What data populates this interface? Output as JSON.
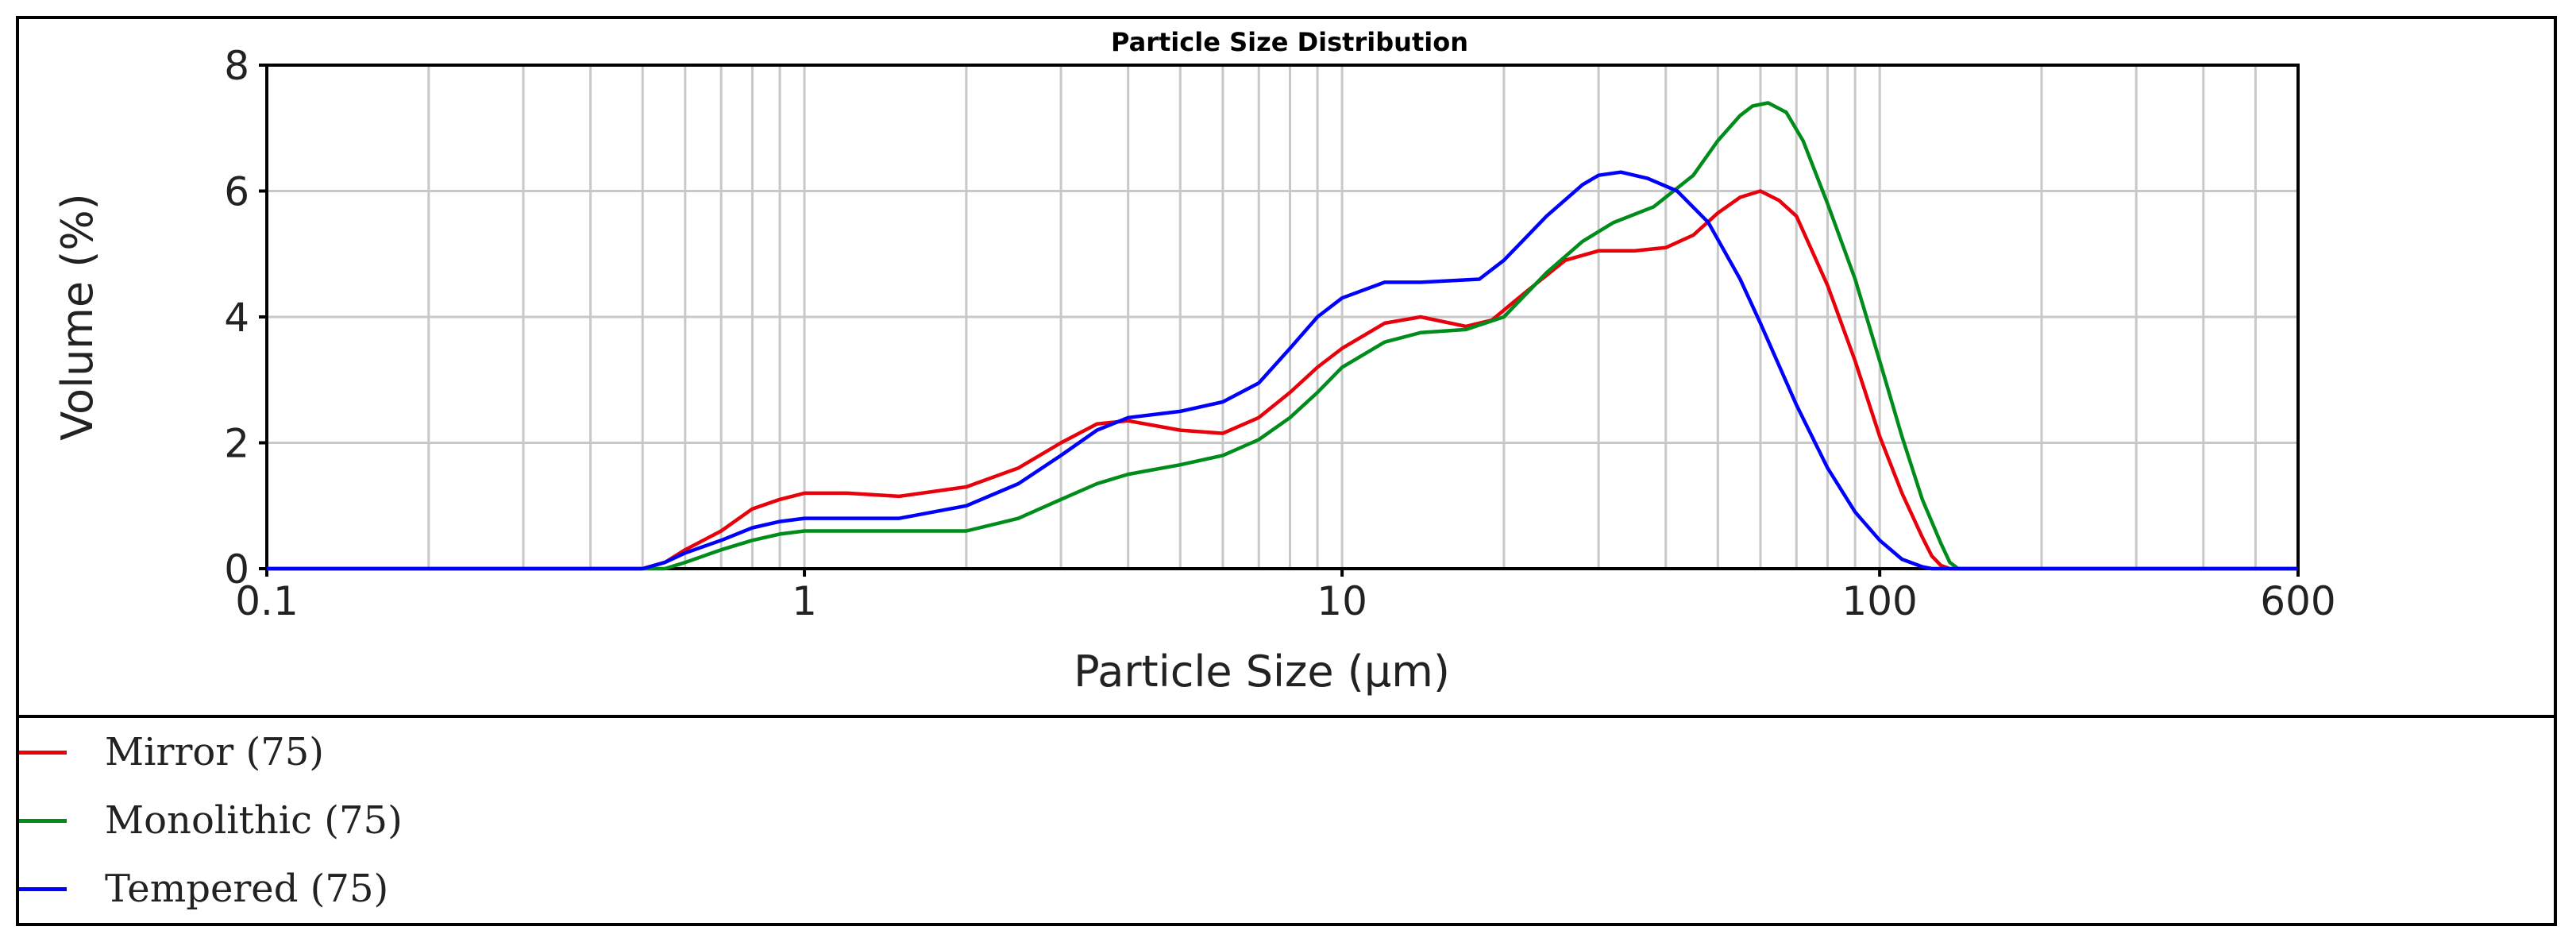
{
  "chart_data": {
    "type": "line",
    "title": "Particle Size Distribution",
    "xlabel": "Particle Size (µm)",
    "ylabel": "Volume (%)",
    "xscale": "log",
    "xlim": [
      0.1,
      600
    ],
    "ylim": [
      0,
      8
    ],
    "x_ticks": [
      "0.1",
      "1",
      "10",
      "100",
      "600"
    ],
    "y_ticks": [
      "0",
      "2",
      "4",
      "6",
      "8"
    ],
    "grid": true,
    "legend_position": "bottom",
    "series": [
      {
        "name": "Mirror (75)",
        "color": "#e8000b",
        "points": [
          [
            0.1,
            0
          ],
          [
            0.5,
            0
          ],
          [
            0.55,
            0.1
          ],
          [
            0.6,
            0.3
          ],
          [
            0.7,
            0.6
          ],
          [
            0.8,
            0.95
          ],
          [
            0.9,
            1.1
          ],
          [
            1.0,
            1.2
          ],
          [
            1.2,
            1.2
          ],
          [
            1.5,
            1.15
          ],
          [
            2.0,
            1.3
          ],
          [
            2.5,
            1.6
          ],
          [
            3.0,
            2.0
          ],
          [
            3.5,
            2.3
          ],
          [
            4.0,
            2.35
          ],
          [
            5.0,
            2.2
          ],
          [
            6.0,
            2.15
          ],
          [
            7.0,
            2.4
          ],
          [
            8.0,
            2.8
          ],
          [
            9.0,
            3.2
          ],
          [
            10,
            3.5
          ],
          [
            12,
            3.9
          ],
          [
            14,
            4.0
          ],
          [
            17,
            3.85
          ],
          [
            19,
            3.95
          ],
          [
            22,
            4.4
          ],
          [
            26,
            4.9
          ],
          [
            30,
            5.05
          ],
          [
            35,
            5.05
          ],
          [
            40,
            5.1
          ],
          [
            45,
            5.3
          ],
          [
            50,
            5.65
          ],
          [
            55,
            5.9
          ],
          [
            60,
            6.0
          ],
          [
            65,
            5.85
          ],
          [
            70,
            5.6
          ],
          [
            80,
            4.5
          ],
          [
            90,
            3.3
          ],
          [
            100,
            2.1
          ],
          [
            110,
            1.2
          ],
          [
            120,
            0.5
          ],
          [
            125,
            0.2
          ],
          [
            130,
            0.05
          ],
          [
            135,
            0
          ],
          [
            600,
            0
          ]
        ]
      },
      {
        "name": "Monolithic (75)",
        "color": "#008c1a",
        "points": [
          [
            0.1,
            0
          ],
          [
            0.55,
            0
          ],
          [
            0.6,
            0.1
          ],
          [
            0.7,
            0.3
          ],
          [
            0.8,
            0.45
          ],
          [
            0.9,
            0.55
          ],
          [
            1.0,
            0.6
          ],
          [
            1.5,
            0.6
          ],
          [
            2.0,
            0.6
          ],
          [
            2.5,
            0.8
          ],
          [
            3.0,
            1.1
          ],
          [
            3.5,
            1.35
          ],
          [
            4.0,
            1.5
          ],
          [
            5.0,
            1.65
          ],
          [
            6.0,
            1.8
          ],
          [
            7.0,
            2.05
          ],
          [
            8.0,
            2.4
          ],
          [
            9.0,
            2.8
          ],
          [
            10,
            3.2
          ],
          [
            12,
            3.6
          ],
          [
            14,
            3.75
          ],
          [
            17,
            3.8
          ],
          [
            20,
            4.0
          ],
          [
            24,
            4.7
          ],
          [
            28,
            5.2
          ],
          [
            32,
            5.5
          ],
          [
            38,
            5.75
          ],
          [
            45,
            6.25
          ],
          [
            50,
            6.8
          ],
          [
            55,
            7.2
          ],
          [
            58,
            7.35
          ],
          [
            62,
            7.4
          ],
          [
            67,
            7.25
          ],
          [
            72,
            6.8
          ],
          [
            80,
            5.8
          ],
          [
            90,
            4.6
          ],
          [
            100,
            3.3
          ],
          [
            110,
            2.1
          ],
          [
            120,
            1.1
          ],
          [
            130,
            0.4
          ],
          [
            135,
            0.1
          ],
          [
            140,
            0
          ],
          [
            600,
            0
          ]
        ]
      },
      {
        "name": "Tempered (75)",
        "color": "#0000ff",
        "points": [
          [
            0.1,
            0
          ],
          [
            0.5,
            0
          ],
          [
            0.55,
            0.1
          ],
          [
            0.6,
            0.25
          ],
          [
            0.7,
            0.45
          ],
          [
            0.8,
            0.65
          ],
          [
            0.9,
            0.75
          ],
          [
            1.0,
            0.8
          ],
          [
            1.5,
            0.8
          ],
          [
            2.0,
            1.0
          ],
          [
            2.5,
            1.35
          ],
          [
            3.0,
            1.8
          ],
          [
            3.5,
            2.2
          ],
          [
            4.0,
            2.4
          ],
          [
            5.0,
            2.5
          ],
          [
            6.0,
            2.65
          ],
          [
            7.0,
            2.95
          ],
          [
            8.0,
            3.5
          ],
          [
            9.0,
            4.0
          ],
          [
            10,
            4.3
          ],
          [
            12,
            4.55
          ],
          [
            14,
            4.55
          ],
          [
            18,
            4.6
          ],
          [
            20,
            4.9
          ],
          [
            24,
            5.6
          ],
          [
            28,
            6.1
          ],
          [
            30,
            6.25
          ],
          [
            33,
            6.3
          ],
          [
            37,
            6.2
          ],
          [
            42,
            6.0
          ],
          [
            48,
            5.5
          ],
          [
            55,
            4.6
          ],
          [
            60,
            3.9
          ],
          [
            70,
            2.6
          ],
          [
            80,
            1.6
          ],
          [
            90,
            0.9
          ],
          [
            100,
            0.45
          ],
          [
            110,
            0.15
          ],
          [
            120,
            0.03
          ],
          [
            125,
            0
          ],
          [
            600,
            0
          ]
        ]
      }
    ]
  }
}
